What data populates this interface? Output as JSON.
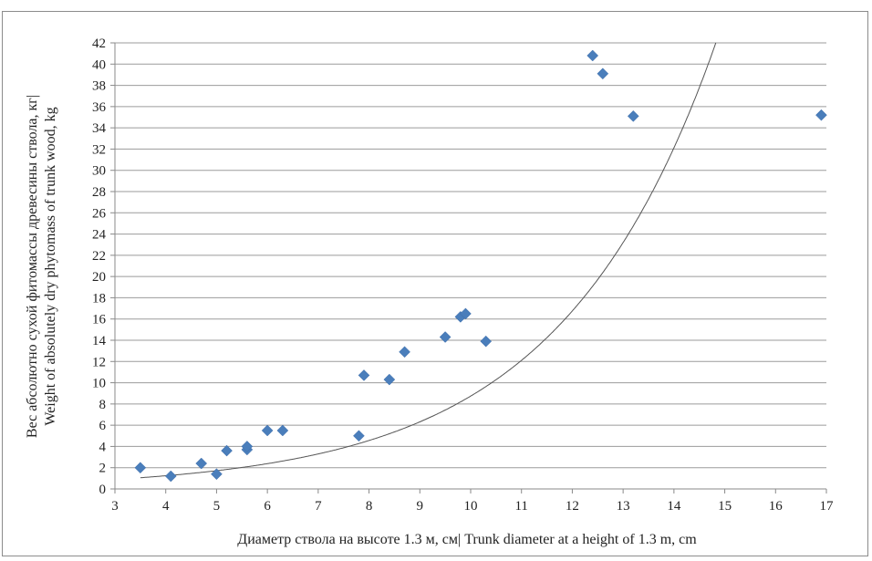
{
  "chart_data": {
    "type": "scatter",
    "xlabel": "Диаметр ствола на высоте 1.3 м, см| Trunk diameter at a height of 1.3 m, cm",
    "ylabel_lines": [
      "Вес абсолютно сухой фитомассы древесины ствола, кг|",
      "Weight of absolutely dry phytomass of trunk wood, kg"
    ],
    "xlim": [
      3,
      17
    ],
    "ylim": [
      0,
      42
    ],
    "x_ticks": [
      3,
      4,
      5,
      6,
      7,
      8,
      9,
      10,
      11,
      12,
      13,
      14,
      15,
      16,
      17
    ],
    "y_ticks": [
      0,
      2,
      4,
      6,
      8,
      10,
      12,
      14,
      16,
      18,
      20,
      22,
      24,
      26,
      28,
      30,
      32,
      34,
      36,
      38,
      40,
      42
    ],
    "grid": "horizontal",
    "marker_color": "#4a7ebb",
    "trend_color": "#555555",
    "trendline": {
      "type": "exponential",
      "a": 0.338,
      "b": 0.3253
    },
    "points": [
      [
        3.5,
        2.0
      ],
      [
        4.1,
        1.2
      ],
      [
        4.7,
        2.4
      ],
      [
        5.0,
        1.4
      ],
      [
        5.2,
        3.6
      ],
      [
        5.6,
        3.7
      ],
      [
        5.6,
        4.0
      ],
      [
        6.0,
        5.5
      ],
      [
        6.3,
        5.5
      ],
      [
        7.8,
        5.0
      ],
      [
        7.9,
        10.7
      ],
      [
        8.4,
        10.3
      ],
      [
        8.7,
        12.9
      ],
      [
        9.5,
        14.3
      ],
      [
        9.8,
        16.2
      ],
      [
        9.9,
        16.5
      ],
      [
        10.3,
        13.9
      ],
      [
        12.4,
        40.8
      ],
      [
        12.6,
        39.1
      ],
      [
        13.2,
        35.1
      ],
      [
        16.9,
        35.2
      ]
    ]
  }
}
